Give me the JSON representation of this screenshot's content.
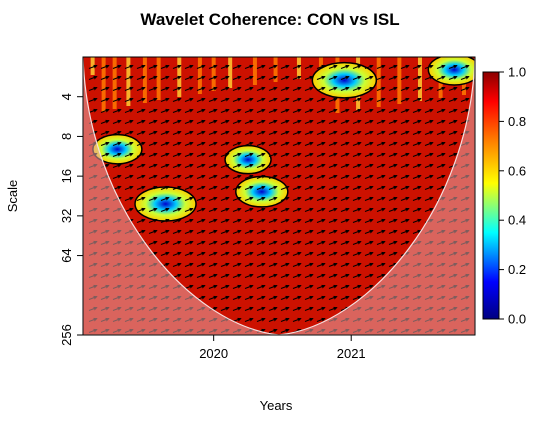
{
  "chart_data": {
    "type": "heatmap",
    "title": "Wavelet Coherence: CON vs ISL",
    "xlabel": "Years",
    "ylabel": "Scale",
    "x_ticks": [
      "2020",
      "2021"
    ],
    "y_ticks": [
      "4",
      "8",
      "16",
      "32",
      "64",
      "256"
    ],
    "y_scale": "log2",
    "y_range": [
      2,
      256
    ],
    "x_range": [
      2019.05,
      2021.9
    ],
    "colorbar": {
      "ticks": [
        "0.0",
        "0.2",
        "0.4",
        "0.6",
        "0.8",
        "1.0"
      ],
      "range": [
        0,
        1
      ],
      "colors": [
        "#000080",
        "#0000ff",
        "#00ffff",
        "#ffff00",
        "#ff8000",
        "#ff0000",
        "#8b0000"
      ]
    },
    "background_value": 0.95,
    "low_coherence_regions": [
      {
        "x": 2019.3,
        "scale": 10,
        "value": 0.45
      },
      {
        "x": 2019.65,
        "scale": 26,
        "value": 0.25
      },
      {
        "x": 2020.25,
        "scale": 12,
        "value": 0.5
      },
      {
        "x": 2020.35,
        "scale": 21,
        "value": 0.4
      },
      {
        "x": 2020.95,
        "scale": 3,
        "value": 0.2
      },
      {
        "x": 2021.75,
        "scale": 2.5,
        "value": 0.4
      }
    ],
    "arrow_direction": "right",
    "cone_of_influence": true,
    "significance_contours": true
  }
}
